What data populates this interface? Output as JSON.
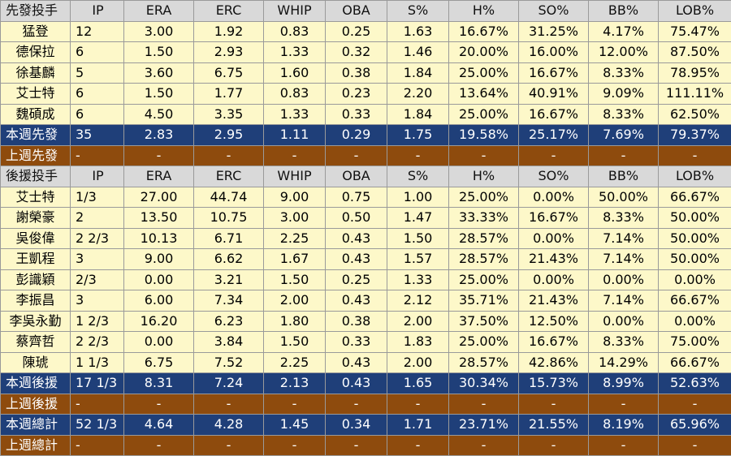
{
  "columns": [
    "IP",
    "ERA",
    "ERC",
    "WHIP",
    "OBA",
    "S%",
    "H%",
    "SO%",
    "BB%",
    "LOB%"
  ],
  "sections": [
    {
      "header": "先發投手",
      "rows": [
        {
          "name": "猛登",
          "stats": [
            "12",
            "3.00",
            "1.92",
            "0.83",
            "0.25",
            "1.63",
            "16.67%",
            "31.25%",
            "4.17%",
            "75.47%"
          ]
        },
        {
          "name": "德保拉",
          "stats": [
            "6",
            "1.50",
            "2.93",
            "1.33",
            "0.32",
            "1.46",
            "20.00%",
            "16.00%",
            "12.00%",
            "87.50%"
          ]
        },
        {
          "name": "徐基麟",
          "stats": [
            "5",
            "3.60",
            "6.75",
            "1.60",
            "0.38",
            "1.84",
            "25.00%",
            "16.67%",
            "8.33%",
            "78.95%"
          ]
        },
        {
          "name": "艾士特",
          "stats": [
            "6",
            "1.50",
            "1.77",
            "0.83",
            "0.23",
            "2.20",
            "13.64%",
            "40.91%",
            "9.09%",
            "111.11%"
          ]
        },
        {
          "name": "魏碩成",
          "stats": [
            "6",
            "4.50",
            "3.35",
            "1.33",
            "0.33",
            "1.84",
            "25.00%",
            "16.67%",
            "8.33%",
            "62.50%"
          ]
        }
      ],
      "this_week": {
        "label": "本週先發",
        "stats": [
          "35",
          "2.83",
          "2.95",
          "1.11",
          "0.29",
          "1.75",
          "19.58%",
          "25.17%",
          "7.69%",
          "79.37%"
        ]
      },
      "last_week": {
        "label": "上週先發",
        "stats": [
          "-",
          "-",
          "-",
          "-",
          "-",
          "-",
          "-",
          "-",
          "-",
          "-"
        ]
      }
    },
    {
      "header": "後援投手",
      "rows": [
        {
          "name": "艾士特",
          "stats": [
            "1/3",
            "27.00",
            "44.74",
            "9.00",
            "0.75",
            "1.00",
            "25.00%",
            "0.00%",
            "50.00%",
            "66.67%"
          ]
        },
        {
          "name": "謝榮豪",
          "stats": [
            "2",
            "13.50",
            "10.75",
            "3.00",
            "0.50",
            "1.47",
            "33.33%",
            "16.67%",
            "8.33%",
            "50.00%"
          ]
        },
        {
          "name": "吳俊偉",
          "stats": [
            "2 2/3",
            "10.13",
            "6.71",
            "2.25",
            "0.43",
            "1.50",
            "28.57%",
            "0.00%",
            "7.14%",
            "50.00%"
          ]
        },
        {
          "name": "王凱程",
          "stats": [
            "3",
            "9.00",
            "6.62",
            "1.67",
            "0.43",
            "1.57",
            "28.57%",
            "21.43%",
            "7.14%",
            "50.00%"
          ]
        },
        {
          "name": "彭識穎",
          "stats": [
            "2/3",
            "0.00",
            "3.21",
            "1.50",
            "0.25",
            "1.33",
            "25.00%",
            "0.00%",
            "0.00%",
            "0.00%"
          ]
        },
        {
          "name": "李振昌",
          "stats": [
            "3",
            "6.00",
            "7.34",
            "2.00",
            "0.43",
            "2.12",
            "35.71%",
            "21.43%",
            "7.14%",
            "66.67%"
          ]
        },
        {
          "name": "李吳永勤",
          "stats": [
            "1 2/3",
            "16.20",
            "6.23",
            "1.80",
            "0.38",
            "2.00",
            "37.50%",
            "12.50%",
            "0.00%",
            "0.00%"
          ]
        },
        {
          "name": "蔡齊哲",
          "stats": [
            "2 2/3",
            "0.00",
            "3.84",
            "1.50",
            "0.33",
            "1.83",
            "25.00%",
            "16.67%",
            "8.33%",
            "75.00%"
          ]
        },
        {
          "name": "陳琥",
          "stats": [
            "1 1/3",
            "6.75",
            "7.52",
            "2.25",
            "0.43",
            "2.00",
            "28.57%",
            "42.86%",
            "14.29%",
            "66.67%"
          ]
        }
      ],
      "this_week": {
        "label": "本週後援",
        "stats": [
          "17 1/3",
          "8.31",
          "7.24",
          "2.13",
          "0.43",
          "1.65",
          "30.34%",
          "15.73%",
          "8.99%",
          "52.63%"
        ]
      },
      "last_week": {
        "label": "上週後援",
        "stats": [
          "-",
          "-",
          "-",
          "-",
          "-",
          "-",
          "-",
          "-",
          "-",
          "-"
        ]
      }
    }
  ],
  "total": {
    "this_week": {
      "label": "本週總計",
      "stats": [
        "52 1/3",
        "4.64",
        "4.28",
        "1.45",
        "0.34",
        "1.71",
        "23.71%",
        "21.55%",
        "8.19%",
        "65.96%"
      ]
    },
    "last_week": {
      "label": "上週總計",
      "stats": [
        "-",
        "-",
        "-",
        "-",
        "-",
        "-",
        "-",
        "-",
        "-",
        "-"
      ]
    }
  }
}
